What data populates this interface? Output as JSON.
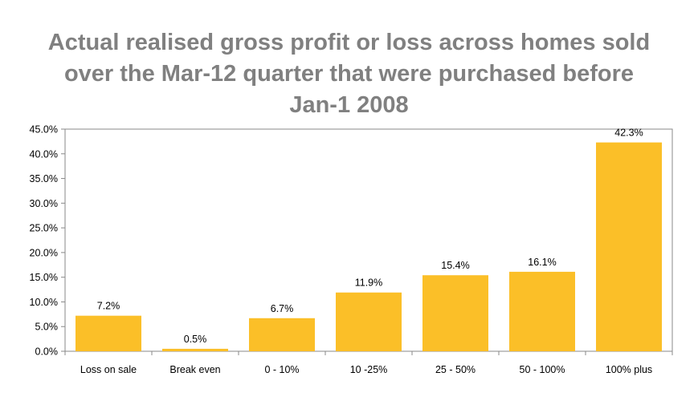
{
  "chart_data": {
    "type": "bar",
    "title_lines": [
      "Actual realised gross profit or loss across homes sold",
      "over the Mar-12 quarter that were purchased before",
      "Jan-1 2008"
    ],
    "categories": [
      "Loss on sale",
      "Break even",
      "0 - 10%",
      "10 -25%",
      "25 - 50%",
      "50 - 100%",
      "100% plus"
    ],
    "values": [
      7.2,
      0.5,
      6.7,
      11.9,
      15.4,
      16.1,
      42.3
    ],
    "value_labels": [
      "7.2%",
      "0.5%",
      "6.7%",
      "11.9%",
      "15.4%",
      "16.1%",
      "42.3%"
    ],
    "yticks": [
      "0.0%",
      "5.0%",
      "10.0%",
      "15.0%",
      "20.0%",
      "25.0%",
      "30.0%",
      "35.0%",
      "40.0%",
      "45.0%"
    ],
    "ylim": [
      0,
      45
    ],
    "xlabel": "",
    "ylabel": "",
    "grid": false,
    "bar_color": "#FBBF28"
  }
}
